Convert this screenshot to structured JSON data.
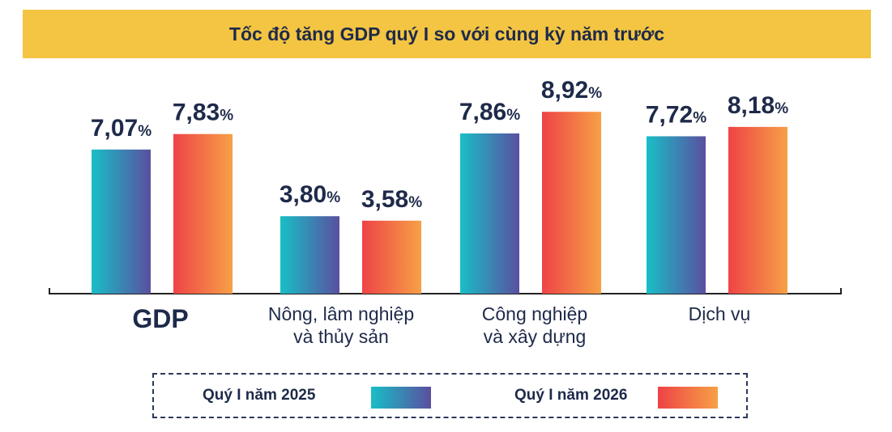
{
  "chart_data": {
    "type": "bar",
    "title": "Tốc độ tăng GDP quý I so với cùng kỳ năm trước",
    "categories": [
      "GDP",
      "Nông, lâm nghiệp\nvà thủy sản",
      "Công nghiệp\nvà xây dựng",
      "Dịch vụ"
    ],
    "series": [
      {
        "name": "Quý I năm 2025",
        "values": [
          7.07,
          3.8,
          7.86,
          7.72
        ],
        "labels": [
          "7,07",
          "3,80",
          "7,86",
          "7,72"
        ],
        "gradient": [
          "#19bec6",
          "#5a4fa0"
        ]
      },
      {
        "name": "Quý I năm 2026",
        "values": [
          7.83,
          3.58,
          8.92,
          8.18
        ],
        "labels": [
          "7,83",
          "3,58",
          "8,92",
          "8,18"
        ],
        "gradient": [
          "#ee4346",
          "#f7a046"
        ]
      }
    ],
    "value_suffix": "%",
    "ylim": [
      0,
      10
    ],
    "grid": false,
    "legend_position": "bottom"
  },
  "colors": {
    "title_band": "#f4c542",
    "text": "#1e2a4a",
    "axis": "#222222"
  }
}
